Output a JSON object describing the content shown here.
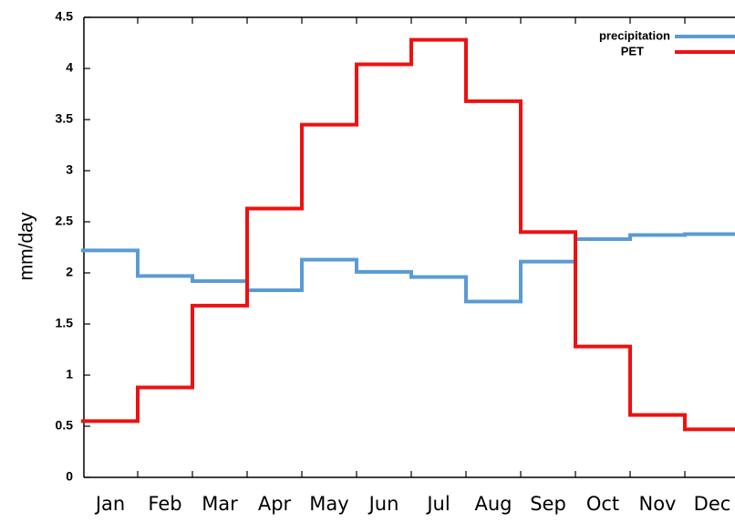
{
  "chart_data": {
    "type": "step",
    "y_label": "mm/day",
    "categories": [
      "Jan",
      "Feb",
      "Mar",
      "Apr",
      "May",
      "Jun",
      "Jul",
      "Aug",
      "Sep",
      "Oct",
      "Nov",
      "Dec"
    ],
    "series": [
      {
        "name": "precipitation",
        "color": "#5b9bd5",
        "values": [
          2.22,
          1.97,
          1.92,
          1.83,
          2.13,
          2.01,
          1.96,
          1.72,
          2.11,
          2.33,
          2.37,
          2.38
        ]
      },
      {
        "name": "PET",
        "color": "#ee1111",
        "values": [
          0.55,
          0.88,
          1.68,
          2.63,
          3.45,
          4.04,
          4.28,
          3.68,
          2.4,
          1.28,
          0.61,
          0.47
        ]
      }
    ],
    "ylim": [
      0,
      4.5
    ],
    "yticks": [
      0,
      0.5,
      1,
      1.5,
      2,
      2.5,
      3,
      3.5,
      4,
      4.5
    ],
    "legend": "upper right"
  }
}
